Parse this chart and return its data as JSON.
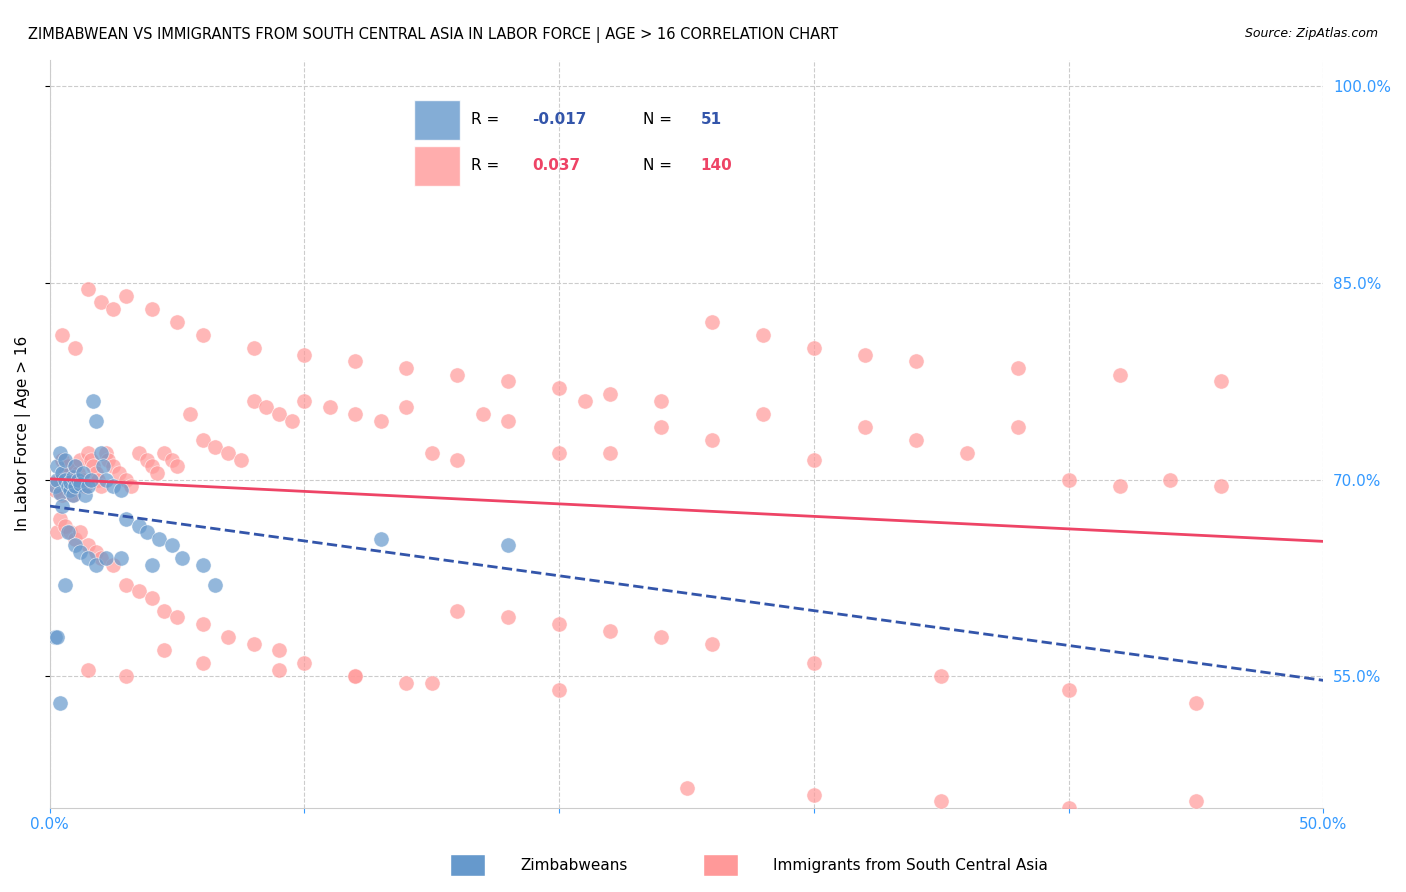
{
  "title": "ZIMBABWEAN VS IMMIGRANTS FROM SOUTH CENTRAL ASIA IN LABOR FORCE | AGE > 16 CORRELATION CHART",
  "source": "Source: ZipAtlas.com",
  "xlabel": "",
  "ylabel": "In Labor Force | Age > 16",
  "xmin": 0.0,
  "xmax": 0.5,
  "ymin": 0.45,
  "ymax": 1.02,
  "yticks": [
    0.55,
    0.7,
    0.85,
    1.0
  ],
  "ytick_labels": [
    "55.0%",
    "70.0%",
    "85.0%",
    "100.0%"
  ],
  "xticks": [
    0.0,
    0.1,
    0.2,
    0.3,
    0.4,
    0.5
  ],
  "xtick_labels": [
    "0.0%",
    "",
    "",
    "",
    "",
    "50.0%"
  ],
  "blue_color": "#6699CC",
  "pink_color": "#FF9999",
  "blue_line_color": "#3355AA",
  "pink_line_color": "#EE4466",
  "axis_color": "#3399FF",
  "grid_color": "#CCCCCC",
  "background_color": "#FFFFFF",
  "legend_r1": "R = -0.017",
  "legend_n1": "N =  51",
  "legend_r2": "R =  0.037",
  "legend_n2": "N = 140",
  "blue_scatter_x": [
    0.002,
    0.003,
    0.003,
    0.004,
    0.004,
    0.005,
    0.005,
    0.006,
    0.006,
    0.007,
    0.008,
    0.008,
    0.009,
    0.009,
    0.01,
    0.01,
    0.011,
    0.012,
    0.013,
    0.014,
    0.015,
    0.016,
    0.017,
    0.018,
    0.02,
    0.021,
    0.022,
    0.025,
    0.028,
    0.03,
    0.035,
    0.038,
    0.04,
    0.043,
    0.048,
    0.052,
    0.06,
    0.065,
    0.002,
    0.003,
    0.004,
    0.006,
    0.007,
    0.01,
    0.012,
    0.015,
    0.018,
    0.022,
    0.028,
    0.13,
    0.18
  ],
  "blue_scatter_y": [
    0.695,
    0.7,
    0.71,
    0.72,
    0.69,
    0.68,
    0.705,
    0.715,
    0.7,
    0.695,
    0.692,
    0.698,
    0.702,
    0.688,
    0.695,
    0.71,
    0.7,
    0.697,
    0.705,
    0.688,
    0.695,
    0.7,
    0.76,
    0.745,
    0.72,
    0.71,
    0.7,
    0.695,
    0.692,
    0.67,
    0.665,
    0.66,
    0.635,
    0.655,
    0.65,
    0.64,
    0.635,
    0.62,
    0.58,
    0.58,
    0.53,
    0.62,
    0.66,
    0.65,
    0.645,
    0.64,
    0.635,
    0.64,
    0.64,
    0.655,
    0.65
  ],
  "pink_scatter_x": [
    0.002,
    0.003,
    0.004,
    0.005,
    0.005,
    0.006,
    0.007,
    0.007,
    0.008,
    0.008,
    0.009,
    0.009,
    0.01,
    0.01,
    0.011,
    0.012,
    0.013,
    0.014,
    0.015,
    0.016,
    0.017,
    0.018,
    0.019,
    0.02,
    0.022,
    0.023,
    0.025,
    0.027,
    0.03,
    0.032,
    0.035,
    0.038,
    0.04,
    0.042,
    0.045,
    0.048,
    0.05,
    0.055,
    0.06,
    0.065,
    0.07,
    0.075,
    0.08,
    0.085,
    0.09,
    0.095,
    0.1,
    0.11,
    0.12,
    0.13,
    0.14,
    0.15,
    0.16,
    0.17,
    0.18,
    0.2,
    0.21,
    0.22,
    0.24,
    0.26,
    0.28,
    0.3,
    0.32,
    0.34,
    0.36,
    0.38,
    0.4,
    0.42,
    0.44,
    0.46,
    0.003,
    0.004,
    0.006,
    0.008,
    0.01,
    0.012,
    0.015,
    0.018,
    0.02,
    0.025,
    0.03,
    0.035,
    0.04,
    0.045,
    0.05,
    0.06,
    0.07,
    0.08,
    0.09,
    0.1,
    0.12,
    0.14,
    0.16,
    0.18,
    0.2,
    0.22,
    0.24,
    0.26,
    0.3,
    0.35,
    0.4,
    0.45,
    0.005,
    0.01,
    0.015,
    0.02,
    0.025,
    0.03,
    0.04,
    0.05,
    0.06,
    0.08,
    0.1,
    0.12,
    0.14,
    0.16,
    0.18,
    0.2,
    0.22,
    0.24,
    0.26,
    0.28,
    0.3,
    0.32,
    0.34,
    0.38,
    0.42,
    0.46,
    0.015,
    0.03,
    0.045,
    0.06,
    0.09,
    0.12,
    0.15,
    0.2,
    0.25,
    0.3,
    0.35,
    0.4,
    0.45
  ],
  "pink_scatter_y": [
    0.692,
    0.698,
    0.7,
    0.688,
    0.715,
    0.705,
    0.695,
    0.71,
    0.7,
    0.695,
    0.692,
    0.688,
    0.7,
    0.71,
    0.705,
    0.715,
    0.7,
    0.695,
    0.72,
    0.715,
    0.71,
    0.705,
    0.7,
    0.695,
    0.72,
    0.715,
    0.71,
    0.705,
    0.7,
    0.695,
    0.72,
    0.715,
    0.71,
    0.705,
    0.72,
    0.715,
    0.71,
    0.75,
    0.73,
    0.725,
    0.72,
    0.715,
    0.76,
    0.755,
    0.75,
    0.745,
    0.76,
    0.755,
    0.75,
    0.745,
    0.755,
    0.72,
    0.715,
    0.75,
    0.745,
    0.72,
    0.76,
    0.72,
    0.74,
    0.73,
    0.75,
    0.715,
    0.74,
    0.73,
    0.72,
    0.74,
    0.7,
    0.695,
    0.7,
    0.695,
    0.66,
    0.67,
    0.665,
    0.66,
    0.655,
    0.66,
    0.65,
    0.645,
    0.64,
    0.635,
    0.62,
    0.615,
    0.61,
    0.6,
    0.595,
    0.59,
    0.58,
    0.575,
    0.57,
    0.56,
    0.55,
    0.545,
    0.6,
    0.595,
    0.59,
    0.585,
    0.58,
    0.575,
    0.56,
    0.55,
    0.54,
    0.53,
    0.81,
    0.8,
    0.845,
    0.835,
    0.83,
    0.84,
    0.83,
    0.82,
    0.81,
    0.8,
    0.795,
    0.79,
    0.785,
    0.78,
    0.775,
    0.77,
    0.765,
    0.76,
    0.82,
    0.81,
    0.8,
    0.795,
    0.79,
    0.785,
    0.78,
    0.775,
    0.555,
    0.55,
    0.57,
    0.56,
    0.555,
    0.55,
    0.545,
    0.54,
    0.465,
    0.46,
    0.455,
    0.45,
    0.455
  ]
}
